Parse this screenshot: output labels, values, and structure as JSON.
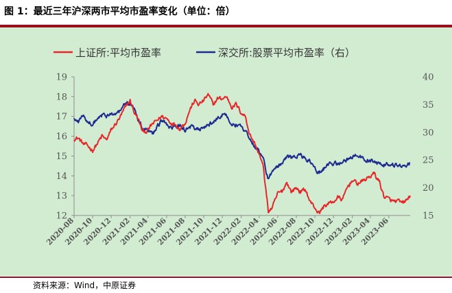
{
  "header": {
    "figure_title": "图 1：最近三年沪深两市平均市盈率变化（单位：倍）"
  },
  "footer": {
    "source": "资料来源：Wind，中原证券"
  },
  "colors": {
    "series_sse": "#e8262a",
    "series_szse": "#1d2a8f",
    "plot_background": "#d2ecd2",
    "rule": "#9b0f1a"
  },
  "chart_data": {
    "type": "line",
    "grid": false,
    "legend_position": "top",
    "x_axis": {
      "type": "date",
      "range": [
        "2020-08-01",
        "2023-08-10"
      ],
      "tick_labels": [
        "2020-08",
        "2020-10",
        "2020-12",
        "2021-02",
        "2021-04",
        "2021-06",
        "2021-08",
        "2021-10",
        "2021-12",
        "2022-02",
        "2022-04",
        "2022-06",
        "2022-08",
        "2022-10",
        "2022-12",
        "2023-02",
        "2023-04",
        "2023-06"
      ]
    },
    "y_left": {
      "range": [
        12,
        19
      ],
      "ticks": [
        12,
        13,
        14,
        15,
        16,
        17,
        18,
        19
      ]
    },
    "y_right": {
      "range": [
        15,
        40
      ],
      "ticks": [
        15,
        20,
        25,
        30,
        35,
        40
      ]
    },
    "series": [
      {
        "name": "上证所:平均市盈率",
        "axis": "left",
        "x": [
          "2020-08-01",
          "2020-08-15",
          "2020-09-01",
          "2020-09-15",
          "2020-10-01",
          "2020-10-15",
          "2020-11-01",
          "2020-11-15",
          "2020-12-01",
          "2020-12-15",
          "2021-01-01",
          "2021-01-15",
          "2021-02-01",
          "2021-02-15",
          "2021-03-01",
          "2021-03-15",
          "2021-04-01",
          "2021-04-15",
          "2021-05-01",
          "2021-05-15",
          "2021-06-01",
          "2021-06-15",
          "2021-07-01",
          "2021-07-15",
          "2021-08-01",
          "2021-08-15",
          "2021-09-01",
          "2021-09-15",
          "2021-10-01",
          "2021-10-15",
          "2021-11-01",
          "2021-11-15",
          "2021-12-01",
          "2021-12-15",
          "2022-01-01",
          "2022-01-15",
          "2022-02-01",
          "2022-02-15",
          "2022-03-01",
          "2022-03-15",
          "2022-04-01",
          "2022-04-15",
          "2022-05-01",
          "2022-05-15",
          "2022-06-01",
          "2022-06-15",
          "2022-07-01",
          "2022-07-15",
          "2022-08-01",
          "2022-08-15",
          "2022-09-01",
          "2022-09-15",
          "2022-10-01",
          "2022-10-15",
          "2022-11-01",
          "2022-11-15",
          "2022-12-01",
          "2022-12-15",
          "2023-01-01",
          "2023-01-15",
          "2023-02-01",
          "2023-02-15",
          "2023-03-01",
          "2023-03-15",
          "2023-04-01",
          "2023-04-15",
          "2023-05-01",
          "2023-05-15",
          "2023-06-01",
          "2023-06-15",
          "2023-07-01",
          "2023-07-15",
          "2023-08-01",
          "2023-08-10"
        ],
        "values": [
          15.9,
          15.9,
          15.6,
          15.5,
          15.3,
          15.6,
          16.0,
          15.8,
          16.3,
          16.6,
          17.0,
          17.4,
          17.8,
          17.2,
          16.8,
          16.2,
          16.3,
          16.6,
          16.8,
          17.0,
          16.9,
          16.7,
          16.6,
          16.4,
          16.7,
          17.3,
          17.8,
          17.6,
          17.8,
          18.1,
          17.6,
          17.9,
          17.9,
          18.0,
          17.5,
          17.6,
          17.2,
          17.0,
          16.1,
          15.7,
          15.1,
          14.4,
          12.2,
          12.4,
          13.1,
          13.2,
          13.7,
          13.2,
          13.4,
          13.2,
          13.3,
          12.7,
          12.4,
          12.1,
          12.5,
          12.6,
          12.7,
          12.9,
          12.8,
          13.4,
          13.8,
          13.6,
          13.7,
          13.8,
          14.0,
          14.1,
          13.7,
          13.0,
          12.8,
          12.7,
          12.7,
          12.6,
          12.8,
          13.0
        ]
      },
      {
        "name": "深交所:股票平均市盈率（右）",
        "axis": "right",
        "x": [
          "2020-08-01",
          "2020-08-15",
          "2020-09-01",
          "2020-09-15",
          "2020-10-01",
          "2020-10-15",
          "2020-11-01",
          "2020-11-15",
          "2020-12-01",
          "2020-12-15",
          "2021-01-01",
          "2021-01-15",
          "2021-02-01",
          "2021-02-15",
          "2021-03-01",
          "2021-03-15",
          "2021-04-01",
          "2021-04-15",
          "2021-05-01",
          "2021-05-15",
          "2021-06-01",
          "2021-06-15",
          "2021-07-01",
          "2021-07-15",
          "2021-08-01",
          "2021-08-15",
          "2021-09-01",
          "2021-09-15",
          "2021-10-01",
          "2021-10-15",
          "2021-11-01",
          "2021-11-15",
          "2021-12-01",
          "2021-12-15",
          "2022-01-01",
          "2022-01-15",
          "2022-02-01",
          "2022-02-15",
          "2022-03-01",
          "2022-03-15",
          "2022-04-01",
          "2022-04-15",
          "2022-05-01",
          "2022-05-15",
          "2022-06-01",
          "2022-06-15",
          "2022-07-01",
          "2022-07-15",
          "2022-08-01",
          "2022-08-15",
          "2022-09-01",
          "2022-09-15",
          "2022-10-01",
          "2022-10-15",
          "2022-11-01",
          "2022-11-15",
          "2022-12-01",
          "2022-12-15",
          "2023-01-01",
          "2023-01-15",
          "2023-02-01",
          "2023-02-15",
          "2023-03-01",
          "2023-03-15",
          "2023-04-01",
          "2023-04-15",
          "2023-05-01",
          "2023-05-15",
          "2023-06-01",
          "2023-06-15",
          "2023-07-01",
          "2023-07-15",
          "2023-08-01",
          "2023-08-10"
        ],
        "values": [
          32.5,
          31.8,
          33.2,
          32.0,
          31.5,
          32.2,
          33.0,
          32.8,
          33.5,
          33.2,
          34.0,
          35.0,
          35.5,
          34.2,
          32.2,
          30.8,
          30.5,
          29.5,
          30.8,
          32.0,
          31.5,
          30.5,
          30.8,
          31.2,
          30.5,
          31.2,
          30.8,
          30.5,
          30.8,
          31.2,
          31.8,
          32.5,
          33.2,
          33.0,
          31.8,
          31.5,
          30.8,
          30.5,
          28.5,
          27.8,
          26.5,
          25.0,
          21.5,
          23.0,
          24.0,
          24.5,
          25.8,
          25.5,
          26.0,
          25.8,
          25.2,
          24.8,
          23.5,
          22.8,
          23.5,
          24.2,
          24.5,
          24.2,
          24.5,
          25.0,
          25.8,
          26.0,
          25.5,
          25.2,
          25.0,
          24.8,
          24.2,
          24.0,
          24.5,
          24.2,
          24.0,
          24.0,
          24.3,
          24.5
        ]
      }
    ]
  }
}
